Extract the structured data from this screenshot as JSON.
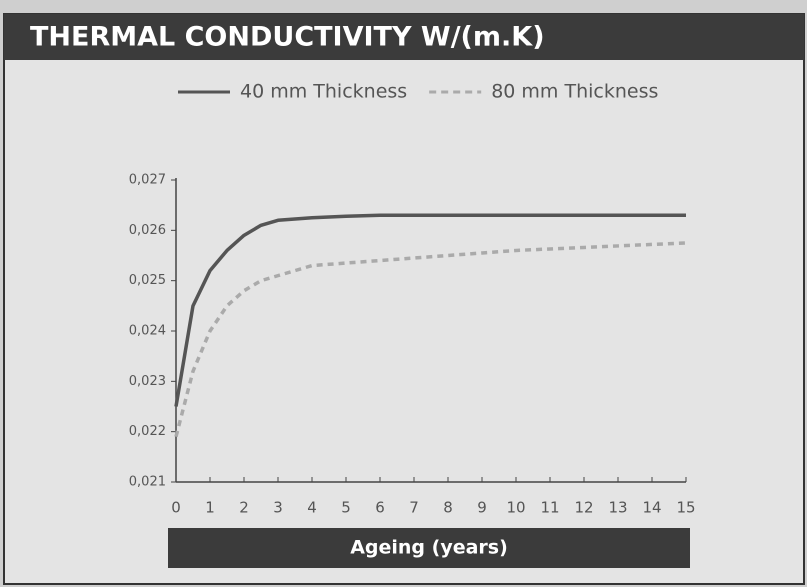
{
  "chart_data": {
    "type": "line",
    "title": "THERMAL CONDUCTIVITY W/(m.K)",
    "x_label": "Ageing (years)",
    "x": [
      0,
      0.5,
      1,
      1.5,
      2,
      2.5,
      3,
      4,
      5,
      6,
      7,
      8,
      9,
      10,
      11,
      12,
      13,
      14,
      15
    ],
    "series": [
      {
        "name": "40 mm Thickness",
        "color": "#555555",
        "style": "solid",
        "values": [
          0.0225,
          0.0245,
          0.0252,
          0.0256,
          0.0259,
          0.0261,
          0.0262,
          0.02625,
          0.02628,
          0.0263,
          0.0263,
          0.0263,
          0.0263,
          0.0263,
          0.0263,
          0.0263,
          0.0263,
          0.0263,
          0.0263
        ]
      },
      {
        "name": "80 mm Thickness",
        "color": "#aaaaaa",
        "style": "dashed",
        "values": [
          0.0219,
          0.0232,
          0.024,
          0.0245,
          0.0248,
          0.025,
          0.0251,
          0.0253,
          0.02535,
          0.0254,
          0.02545,
          0.0255,
          0.02555,
          0.0256,
          0.02563,
          0.02566,
          0.02569,
          0.02572,
          0.02575
        ]
      }
    ],
    "xlim": [
      0,
      15
    ],
    "xticks": [
      0,
      1,
      2,
      3,
      4,
      5,
      6,
      7,
      8,
      9,
      10,
      11,
      12,
      13,
      14,
      15
    ],
    "ylim": [
      0.021,
      0.027
    ],
    "yticks": [
      {
        "value": 0.021,
        "label": "0,021"
      },
      {
        "value": 0.022,
        "label": "0,022"
      },
      {
        "value": 0.023,
        "label": "0,023"
      },
      {
        "value": 0.024,
        "label": "0,024"
      },
      {
        "value": 0.025,
        "label": "0,025"
      },
      {
        "value": 0.026,
        "label": "0,026"
      },
      {
        "value": 0.027,
        "label": "0,027"
      }
    ],
    "grid": false
  }
}
